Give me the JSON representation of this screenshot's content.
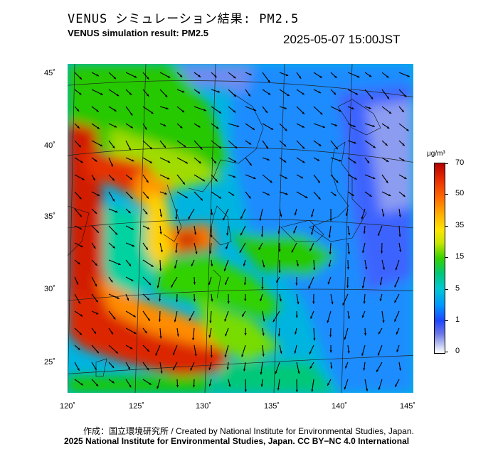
{
  "title_jp": "VENUS シミュレーション結果: PM2.5",
  "title_en": "VENUS simulation result: PM2.5",
  "timestamp": "2025-05-07 15:00JST",
  "map": {
    "variable": "PM2.5",
    "lon_labels": [
      "120˚",
      "125˚",
      "130˚",
      "135˚",
      "140˚",
      "145˚"
    ],
    "lat_labels": [
      "45˚",
      "40˚",
      "35˚",
      "30˚",
      "25˚"
    ],
    "overlay": "wind-arrows"
  },
  "colorbar": {
    "unit": "μg/m³",
    "labels": [
      "70",
      "50",
      "35",
      "15",
      "5",
      "1",
      "0"
    ],
    "colors": [
      "#b40000",
      "#ff6a00",
      "#ffe600",
      "#36d200",
      "#00c8d2",
      "#1e46ff",
      "#ffffff"
    ]
  },
  "credits": {
    "line1": "作成：国立環境研究所 / Created by National Institute for Environmental Studies, Japan.",
    "line2": "2025 National Institute for Environmental Studies, Japan. CC BY−NC 4.0 International"
  }
}
